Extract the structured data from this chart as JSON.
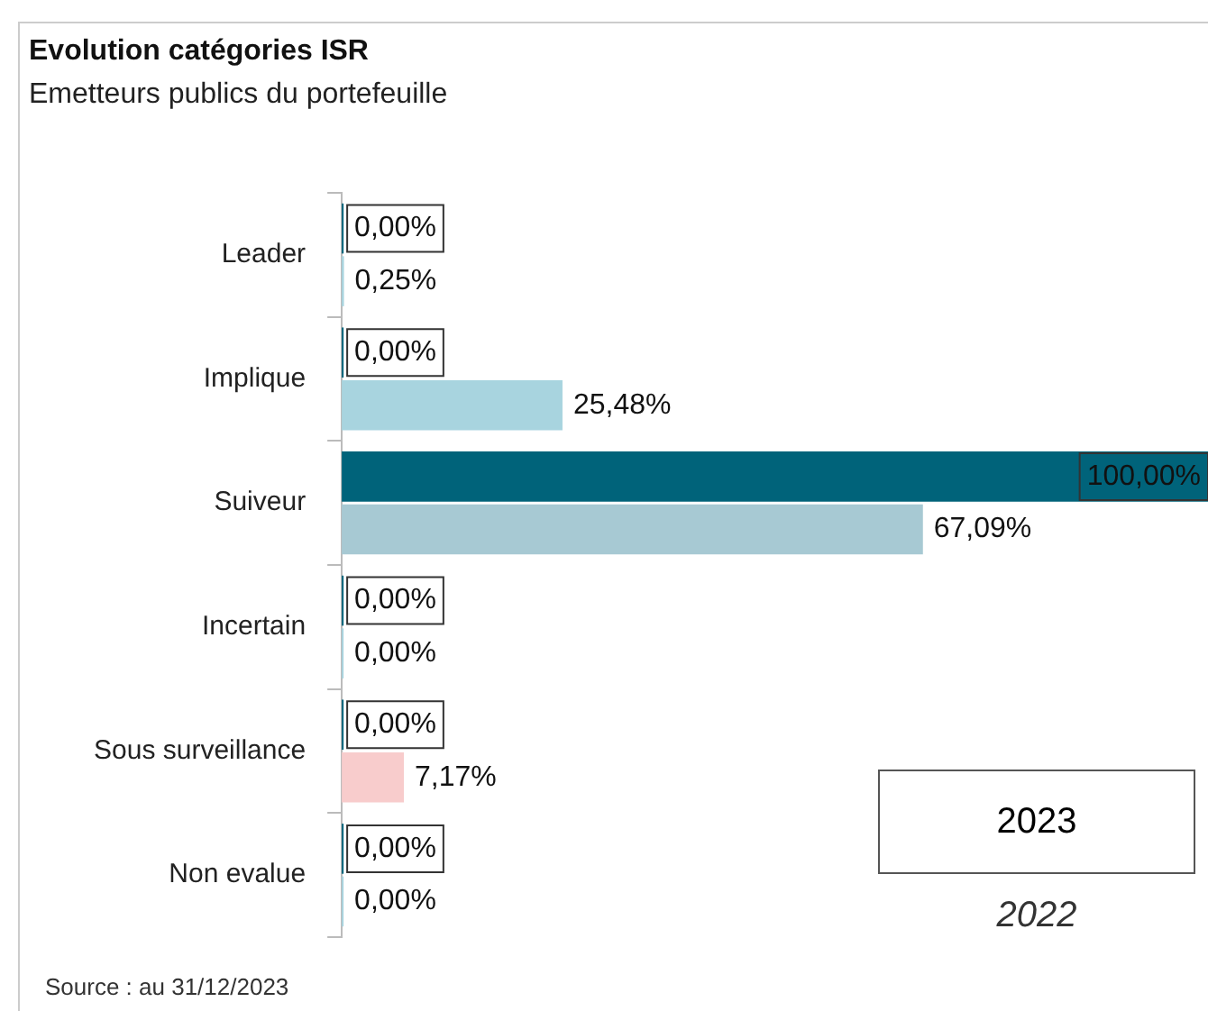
{
  "chart_data": {
    "type": "bar",
    "orientation": "horizontal",
    "title": "Evolution catégories ISR",
    "subtitle": "Emetteurs publics du portefeuille",
    "categories": [
      "Leader",
      "Implique",
      "Suiveur",
      "Incertain",
      "Sous surveillance",
      "Non evalue"
    ],
    "series": [
      {
        "name": "2023",
        "color": "#00637a",
        "values": [
          0,
          0,
          100,
          0,
          0,
          0
        ],
        "value_labels": [
          "0,00%",
          "0,00%",
          "100,00%",
          "0,00%",
          "0,00%",
          "0,00%"
        ]
      },
      {
        "name": "2022",
        "colors": [
          "#a8d4df",
          "#a8d4df",
          "#a7c9d3",
          "#a8d4df",
          "#f8cccc",
          "#a8d4df"
        ],
        "values": [
          0.25,
          25.48,
          67.09,
          0,
          7.17,
          0
        ],
        "value_labels": [
          "0,25%",
          "25,48%",
          "67,09%",
          "0,00%",
          "7,17%",
          "0,00%"
        ]
      }
    ],
    "xlim": [
      0,
      100
    ],
    "grid": false,
    "tick_labels": "y",
    "legend": "bottom right",
    "annotations": [
      "Source : au 31/12/2023"
    ]
  }
}
